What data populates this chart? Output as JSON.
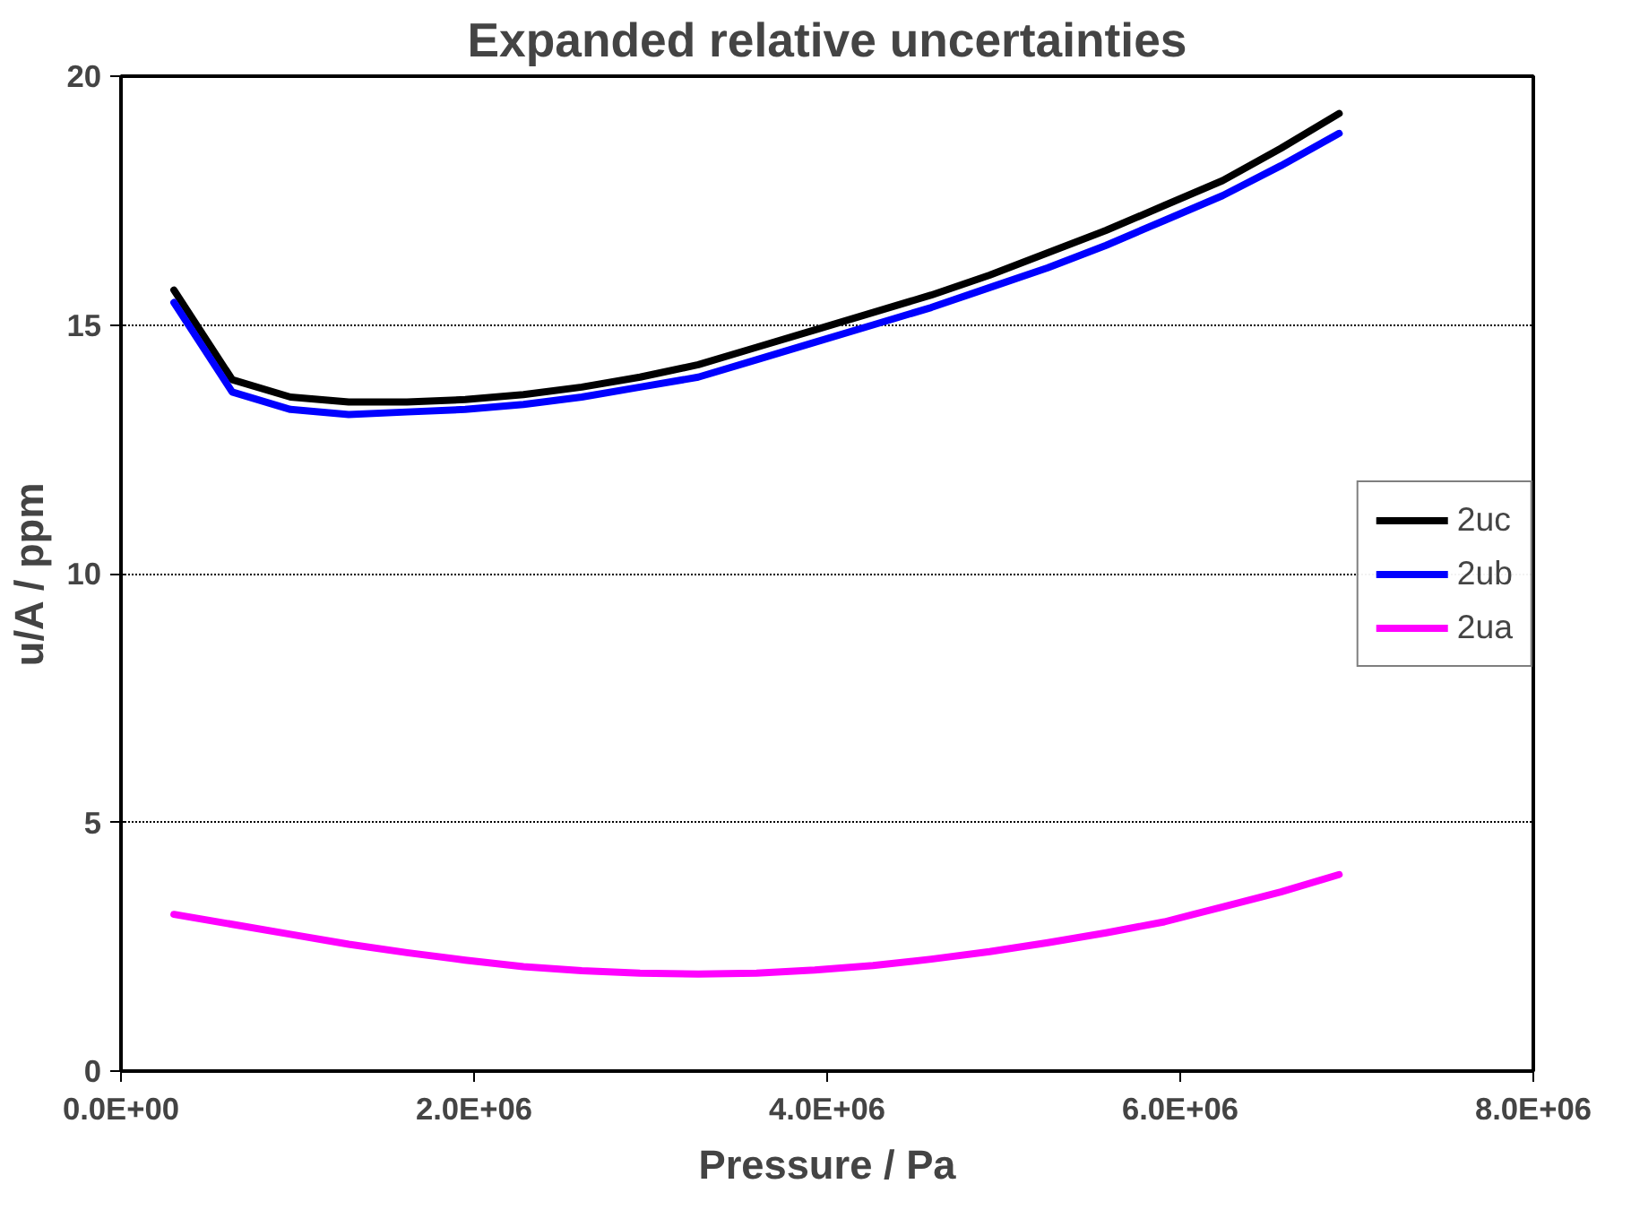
{
  "chart_data": {
    "type": "line",
    "title": "Expanded relative uncertainties",
    "xlabel": "Pressure / Pa",
    "ylabel": "u/A / ppm",
    "x": [
      300000,
      630000,
      960000,
      1290000,
      1620000,
      1950000,
      2280000,
      2610000,
      2940000,
      3270000,
      3600000,
      3930000,
      4260000,
      4590000,
      4920000,
      5250000,
      5580000,
      5910000,
      6240000,
      6570000,
      6900000
    ],
    "series": [
      {
        "name": "2uc",
        "color": "#000000",
        "values": [
          15.7,
          13.9,
          13.55,
          13.45,
          13.45,
          13.5,
          13.6,
          13.75,
          13.95,
          14.2,
          14.55,
          14.9,
          15.25,
          15.6,
          16.0,
          16.45,
          16.9,
          17.4,
          17.9,
          18.55,
          19.25
        ]
      },
      {
        "name": "2ub",
        "color": "#0000ff",
        "values": [
          15.45,
          13.65,
          13.3,
          13.2,
          13.25,
          13.3,
          13.4,
          13.55,
          13.75,
          13.95,
          14.3,
          14.65,
          15.0,
          15.35,
          15.75,
          16.15,
          16.6,
          17.1,
          17.6,
          18.2,
          18.85
        ]
      },
      {
        "name": "2ua",
        "color": "#ff00ff",
        "values": [
          3.15,
          2.95,
          2.75,
          2.55,
          2.38,
          2.23,
          2.1,
          2.02,
          1.97,
          1.95,
          1.97,
          2.03,
          2.12,
          2.25,
          2.4,
          2.58,
          2.78,
          3.0,
          3.3,
          3.6,
          3.95
        ]
      }
    ],
    "xlim": [
      0,
      8000000
    ],
    "ylim": [
      0,
      20
    ],
    "xticks": [
      {
        "value": 0,
        "label": "0.0E+00"
      },
      {
        "value": 2000000,
        "label": "2.0E+06"
      },
      {
        "value": 4000000,
        "label": "4.0E+06"
      },
      {
        "value": 6000000,
        "label": "6.0E+06"
      },
      {
        "value": 8000000,
        "label": "8.0E+06"
      }
    ],
    "yticks": [
      0,
      5,
      10,
      15,
      20
    ],
    "grid": "y",
    "legend": "right",
    "marker": "none",
    "line_style": "solid"
  }
}
